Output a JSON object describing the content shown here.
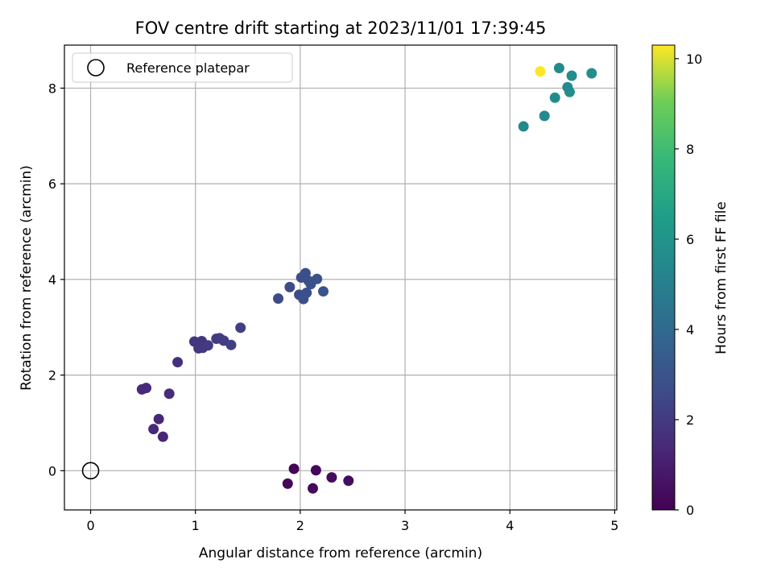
{
  "chart_data": {
    "type": "scatter",
    "title": "FOV centre drift starting at 2023/11/01 17:39:45",
    "xlabel": "Angular distance from reference (arcmin)",
    "ylabel": "Rotation from reference (arcmin)",
    "xlim": [
      -0.25,
      5.02
    ],
    "ylim": [
      -0.82,
      8.9
    ],
    "xticks": [
      0,
      1,
      2,
      3,
      4,
      5
    ],
    "yticks": [
      0,
      2,
      4,
      6,
      8
    ],
    "grid": true,
    "legend": {
      "position": "top-left",
      "entries": [
        "Reference platepar"
      ]
    },
    "reference_point": {
      "x": 0,
      "y": 0,
      "label": "Reference platepar"
    },
    "colorbar": {
      "label": "Hours from first FF file",
      "range": [
        0,
        10.3
      ],
      "ticks": [
        0,
        2,
        4,
        6,
        8,
        10
      ],
      "colormap": [
        "#440154",
        "#3b528b",
        "#21918c",
        "#5ec962",
        "#fde725"
      ]
    },
    "points": [
      {
        "x": 1.94,
        "y": 0.04,
        "hours": 0.1
      },
      {
        "x": 1.88,
        "y": -0.27,
        "hours": 0.2
      },
      {
        "x": 2.15,
        "y": 0.01,
        "hours": 0.25
      },
      {
        "x": 2.12,
        "y": -0.37,
        "hours": 0.3
      },
      {
        "x": 2.3,
        "y": -0.14,
        "hours": 0.35
      },
      {
        "x": 2.46,
        "y": -0.21,
        "hours": 0.4
      },
      {
        "x": 0.49,
        "y": 1.7,
        "hours": 1.4
      },
      {
        "x": 0.53,
        "y": 1.73,
        "hours": 1.45
      },
      {
        "x": 0.75,
        "y": 1.61,
        "hours": 1.5
      },
      {
        "x": 0.65,
        "y": 1.08,
        "hours": 1.3
      },
      {
        "x": 0.6,
        "y": 0.87,
        "hours": 1.35
      },
      {
        "x": 0.69,
        "y": 0.71,
        "hours": 1.3
      },
      {
        "x": 0.83,
        "y": 2.27,
        "hours": 1.6
      },
      {
        "x": 0.99,
        "y": 2.7,
        "hours": 1.85
      },
      {
        "x": 1.03,
        "y": 2.56,
        "hours": 1.9
      },
      {
        "x": 1.06,
        "y": 2.71,
        "hours": 1.9
      },
      {
        "x": 1.07,
        "y": 2.57,
        "hours": 1.95
      },
      {
        "x": 1.12,
        "y": 2.62,
        "hours": 2.0
      },
      {
        "x": 1.2,
        "y": 2.76,
        "hours": 2.0
      },
      {
        "x": 1.23,
        "y": 2.77,
        "hours": 2.05
      },
      {
        "x": 1.27,
        "y": 2.72,
        "hours": 2.1
      },
      {
        "x": 1.34,
        "y": 2.63,
        "hours": 2.15
      },
      {
        "x": 1.43,
        "y": 2.99,
        "hours": 2.2
      },
      {
        "x": 1.79,
        "y": 3.6,
        "hours": 2.6
      },
      {
        "x": 1.9,
        "y": 3.84,
        "hours": 2.65
      },
      {
        "x": 1.99,
        "y": 3.68,
        "hours": 2.7
      },
      {
        "x": 2.01,
        "y": 4.04,
        "hours": 2.75
      },
      {
        "x": 2.03,
        "y": 3.59,
        "hours": 2.8
      },
      {
        "x": 2.05,
        "y": 4.13,
        "hours": 2.85
      },
      {
        "x": 2.06,
        "y": 3.72,
        "hours": 2.85
      },
      {
        "x": 2.08,
        "y": 3.97,
        "hours": 2.9
      },
      {
        "x": 2.1,
        "y": 3.9,
        "hours": 2.9
      },
      {
        "x": 2.16,
        "y": 4.01,
        "hours": 2.95
      },
      {
        "x": 2.22,
        "y": 3.75,
        "hours": 3.0
      },
      {
        "x": 4.13,
        "y": 7.2,
        "hours": 5.5
      },
      {
        "x": 4.33,
        "y": 7.42,
        "hours": 5.55
      },
      {
        "x": 4.43,
        "y": 7.8,
        "hours": 5.6
      },
      {
        "x": 4.47,
        "y": 8.42,
        "hours": 5.6
      },
      {
        "x": 4.55,
        "y": 8.02,
        "hours": 5.65
      },
      {
        "x": 4.57,
        "y": 7.92,
        "hours": 5.65
      },
      {
        "x": 4.59,
        "y": 8.26,
        "hours": 5.7
      },
      {
        "x": 4.78,
        "y": 8.31,
        "hours": 5.7
      },
      {
        "x": 4.29,
        "y": 8.35,
        "hours": 10.3
      }
    ]
  }
}
